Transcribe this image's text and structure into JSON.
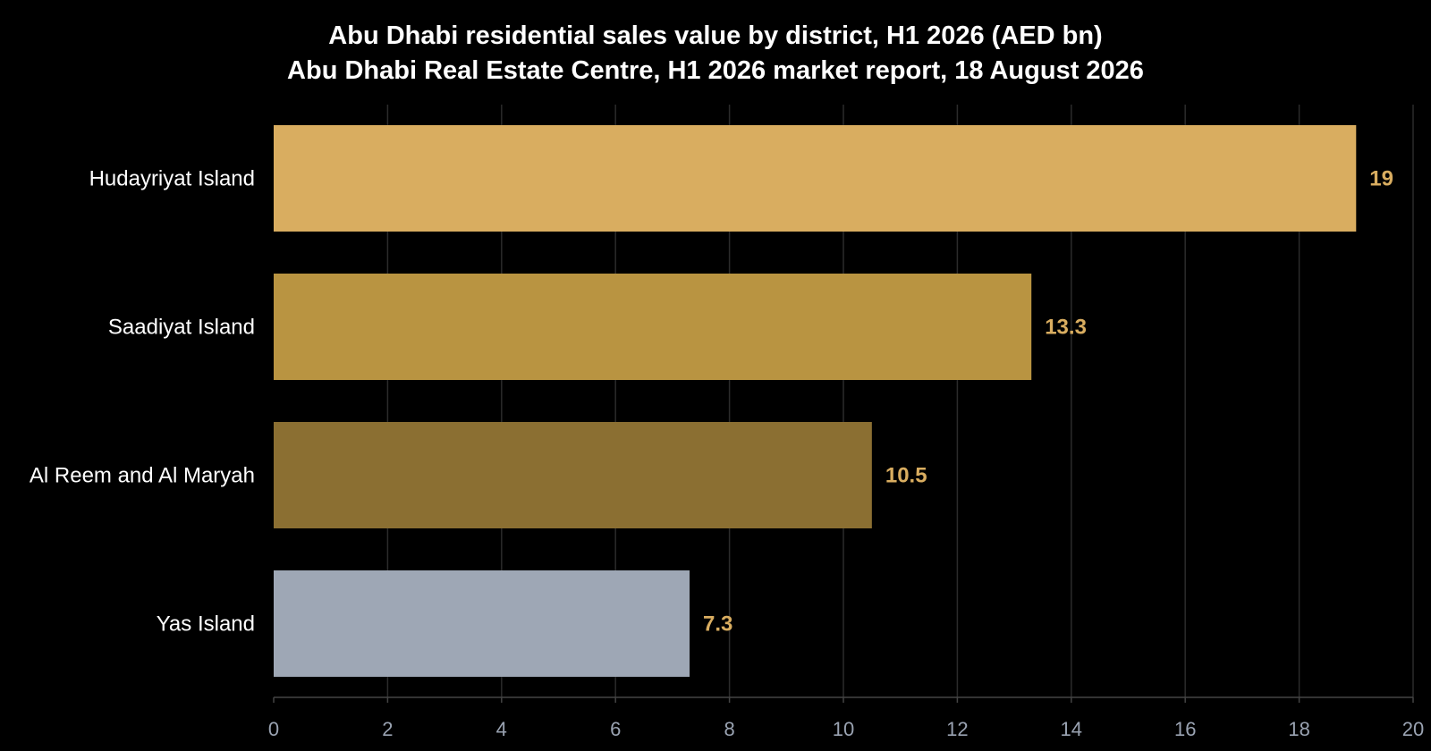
{
  "chart_data": {
    "type": "bar",
    "orientation": "horizontal",
    "title": "Abu Dhabi residential sales value by district, H1 2026 (AED bn)",
    "subtitle": "Abu Dhabi Real Estate Centre, H1 2026 market report, 18 August 2026",
    "categories": [
      "Hudayriyat Island",
      "Saadiyat Island",
      "Al Reem and Al Maryah",
      "Yas Island"
    ],
    "values": [
      19,
      13.3,
      10.5,
      7.3
    ],
    "value_labels": [
      "19",
      "13.3",
      "10.5",
      "7.3"
    ],
    "bar_colors": [
      "#d9ad60",
      "#b99441",
      "#8b6f32",
      "#9ea7b5"
    ],
    "xlim": [
      0,
      20
    ],
    "x_ticks": [
      0,
      2,
      4,
      6,
      8,
      10,
      12,
      14,
      16,
      18,
      20
    ],
    "x_tick_labels": [
      "0",
      "2",
      "4",
      "6",
      "8",
      "10",
      "12",
      "14",
      "16",
      "18",
      "20"
    ],
    "grid": "vertical",
    "legend": "none"
  },
  "colors": {
    "background": "#000000",
    "title": "#ffffff",
    "category_label": "#ffffff",
    "tick_label": "#9aa3b2",
    "value_label": "#d9ad60",
    "gridline": "#2b2b2b",
    "axis_line": "#444444"
  }
}
